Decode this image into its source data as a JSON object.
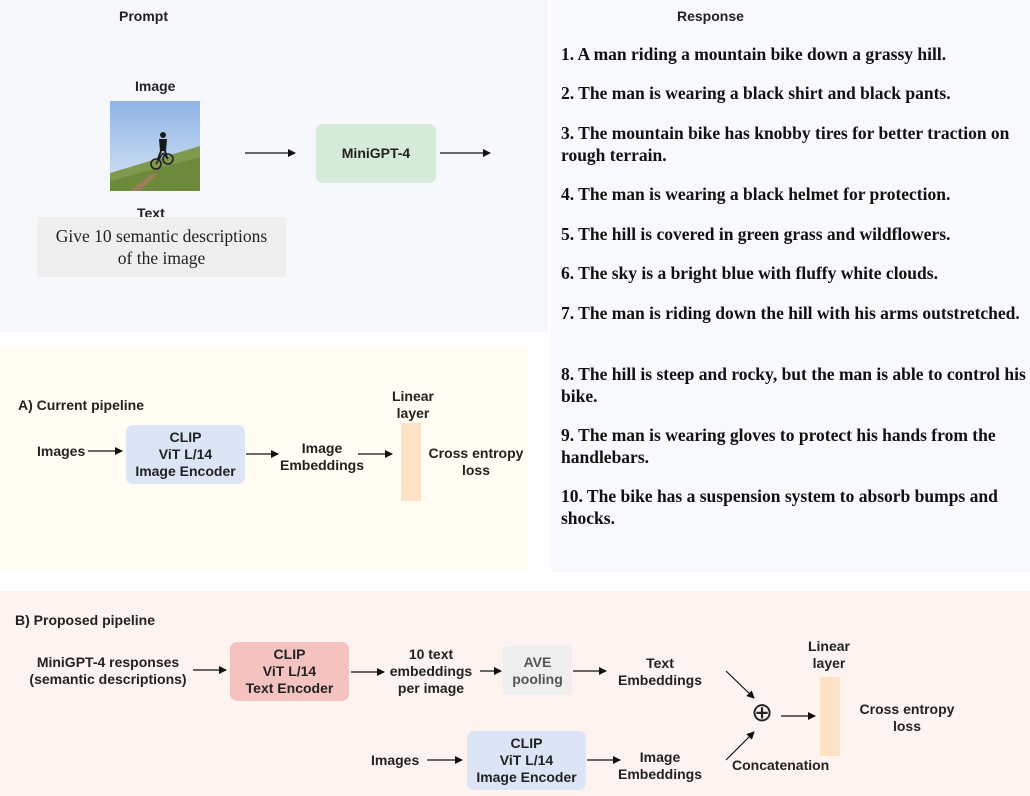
{
  "prompt": {
    "header": "Prompt",
    "image_label": "Image",
    "text_label": "Text",
    "text_box": "Give 10 semantic descriptions\nof the image",
    "model": "MiniGPT-4"
  },
  "response": {
    "header": "Response",
    "items": [
      "1. A man riding a mountain bike down a grassy hill.",
      "2. The man is wearing a black shirt and black pants.",
      "3. The mountain bike has knobby tires for better traction on rough terrain.",
      "4. The man is wearing a black helmet for protection.",
      "5. The hill is covered in green grass and wildflowers.",
      "6. The sky is a bright blue with fluffy white clouds.",
      "7. The man is riding down the hill with his arms outstretched.",
      "8. The hill is steep and rocky, but the man is able to control his bike.",
      "9. The man is wearing gloves to protect his hands from the handlebars.",
      "10. The bike has a suspension system to absorb bumps and shocks."
    ]
  },
  "pipeline_a": {
    "title": "A) Current pipeline",
    "images": "Images",
    "encoder": "CLIP\nViT L/14\nImage Encoder",
    "embeddings": "Image\nEmbeddings",
    "linear": "Linear\nlayer",
    "loss": "Cross entropy\nloss"
  },
  "pipeline_b": {
    "title": "B) Proposed pipeline",
    "responses": "MiniGPT-4 responses\n(semantic descriptions)",
    "text_encoder": "CLIP\nViT L/14\nText Encoder",
    "text_embeds": "10 text\nembeddings\nper image",
    "pooling": "AVE\npooling",
    "text_embeddings": "Text\nEmbeddings",
    "images": "Images",
    "image_encoder": "CLIP\nViT L/14\nImage Encoder",
    "image_embeddings": "Image\nEmbeddings",
    "concat_symbol": "⊕",
    "concat": "Concatenation",
    "linear": "Linear\nlayer",
    "loss": "Cross entropy\nloss"
  },
  "colors": {
    "prompt_bg": "#f7f8fc",
    "pipeline_a_bg": "#fffcf3",
    "pipeline_b_bg": "#fdf4f2",
    "response_bg": "#f8f9fd",
    "model_box": "#d5ead8",
    "clip_image": "#dbe5f6",
    "clip_text": "#f4c3c0",
    "pooling": "#efefef",
    "linear": "#fde2c5"
  }
}
